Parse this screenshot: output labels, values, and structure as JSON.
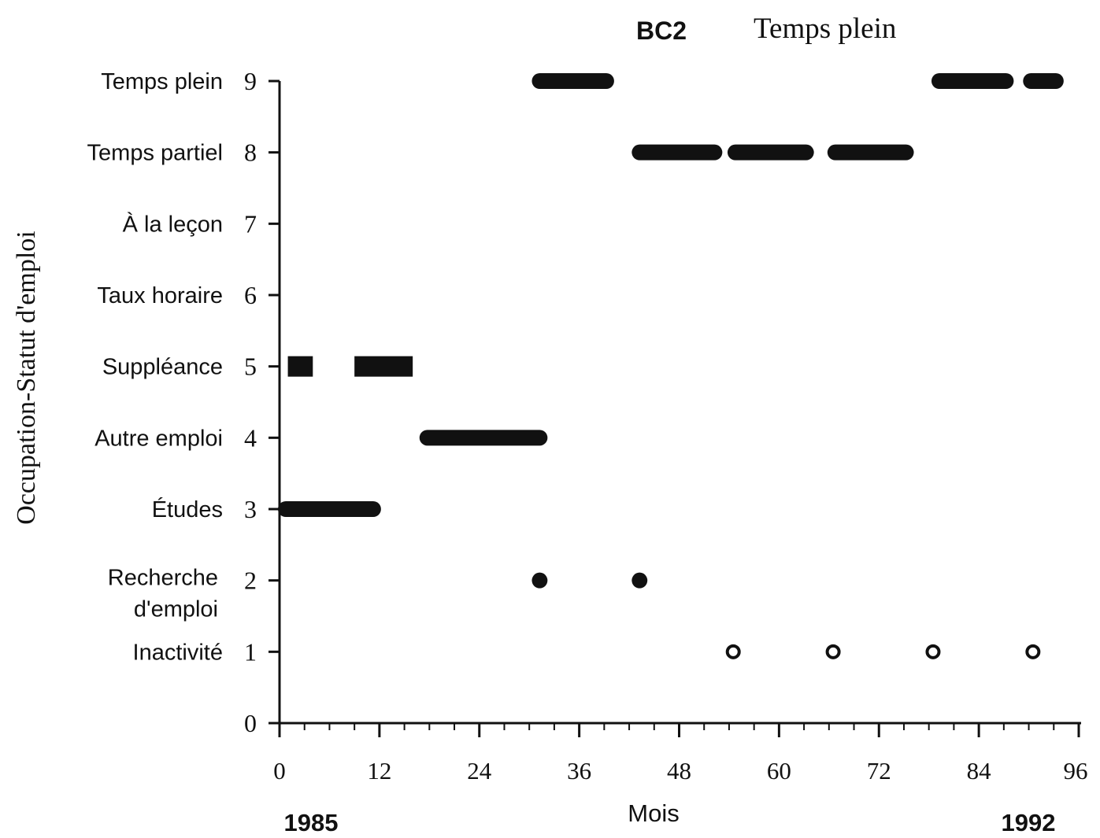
{
  "chart_data": {
    "type": "scatter",
    "title_code": "BC2",
    "title": "Temps plein",
    "xlabel": "Mois",
    "ylabel": "Occupation-Statut d'emploi",
    "start_year": "1985",
    "end_year": "1992",
    "xlim": [
      0,
      96
    ],
    "ylim": [
      0,
      9
    ],
    "x_ticks": [
      "0",
      "12",
      "24",
      "36",
      "48",
      "60",
      "72",
      "84",
      "96"
    ],
    "y_ticks": [
      "0",
      "1",
      "2",
      "3",
      "4",
      "5",
      "6",
      "7",
      "8",
      "9"
    ],
    "y_categories": [
      {
        "value": 9,
        "label": "Temps plein"
      },
      {
        "value": 8,
        "label": "Temps partiel"
      },
      {
        "value": 7,
        "label": "À la leçon"
      },
      {
        "value": 6,
        "label": "Taux horaire"
      },
      {
        "value": 5,
        "label": "Suppléance"
      },
      {
        "value": 4,
        "label": "Autre emploi"
      },
      {
        "value": 3,
        "label": "Études"
      },
      {
        "value": 2,
        "label": "Recherche d'emploi"
      },
      {
        "value": 1,
        "label": "Inactivité"
      }
    ],
    "segments": [
      {
        "y": 3,
        "x": [
          0,
          12
        ],
        "marker": "filled-dot"
      },
      {
        "y": 5,
        "x": [
          1,
          4
        ],
        "marker": "square"
      },
      {
        "y": 5,
        "x": [
          9,
          16
        ],
        "marker": "square"
      },
      {
        "y": 4,
        "x": [
          17,
          32
        ],
        "marker": "filled-dot"
      },
      {
        "y": 2,
        "x": [
          30.5,
          32
        ],
        "marker": "filled-dot"
      },
      {
        "y": 9,
        "x": [
          30.5,
          40
        ],
        "marker": "filled-dot"
      },
      {
        "y": 2,
        "x": [
          42.5,
          44
        ],
        "marker": "filled-dot"
      },
      {
        "y": 8,
        "x": [
          42.5,
          53
        ],
        "marker": "filled-dot"
      },
      {
        "y": 8,
        "x": [
          54,
          64
        ],
        "marker": "filled-dot"
      },
      {
        "y": 8,
        "x": [
          66,
          76
        ],
        "marker": "filled-dot"
      },
      {
        "y": 9,
        "x": [
          78.5,
          88
        ],
        "marker": "filled-dot"
      },
      {
        "y": 9,
        "x": [
          89.5,
          94
        ],
        "marker": "filled-dot"
      }
    ],
    "points": [
      {
        "y": 1,
        "x": 54.5,
        "marker": "open-circle"
      },
      {
        "y": 1,
        "x": 66.5,
        "marker": "open-circle"
      },
      {
        "y": 1,
        "x": 78.5,
        "marker": "open-circle"
      },
      {
        "y": 1,
        "x": 90.5,
        "marker": "open-circle"
      }
    ],
    "colors": {
      "ink": "#111111",
      "background": "#ffffff"
    }
  }
}
